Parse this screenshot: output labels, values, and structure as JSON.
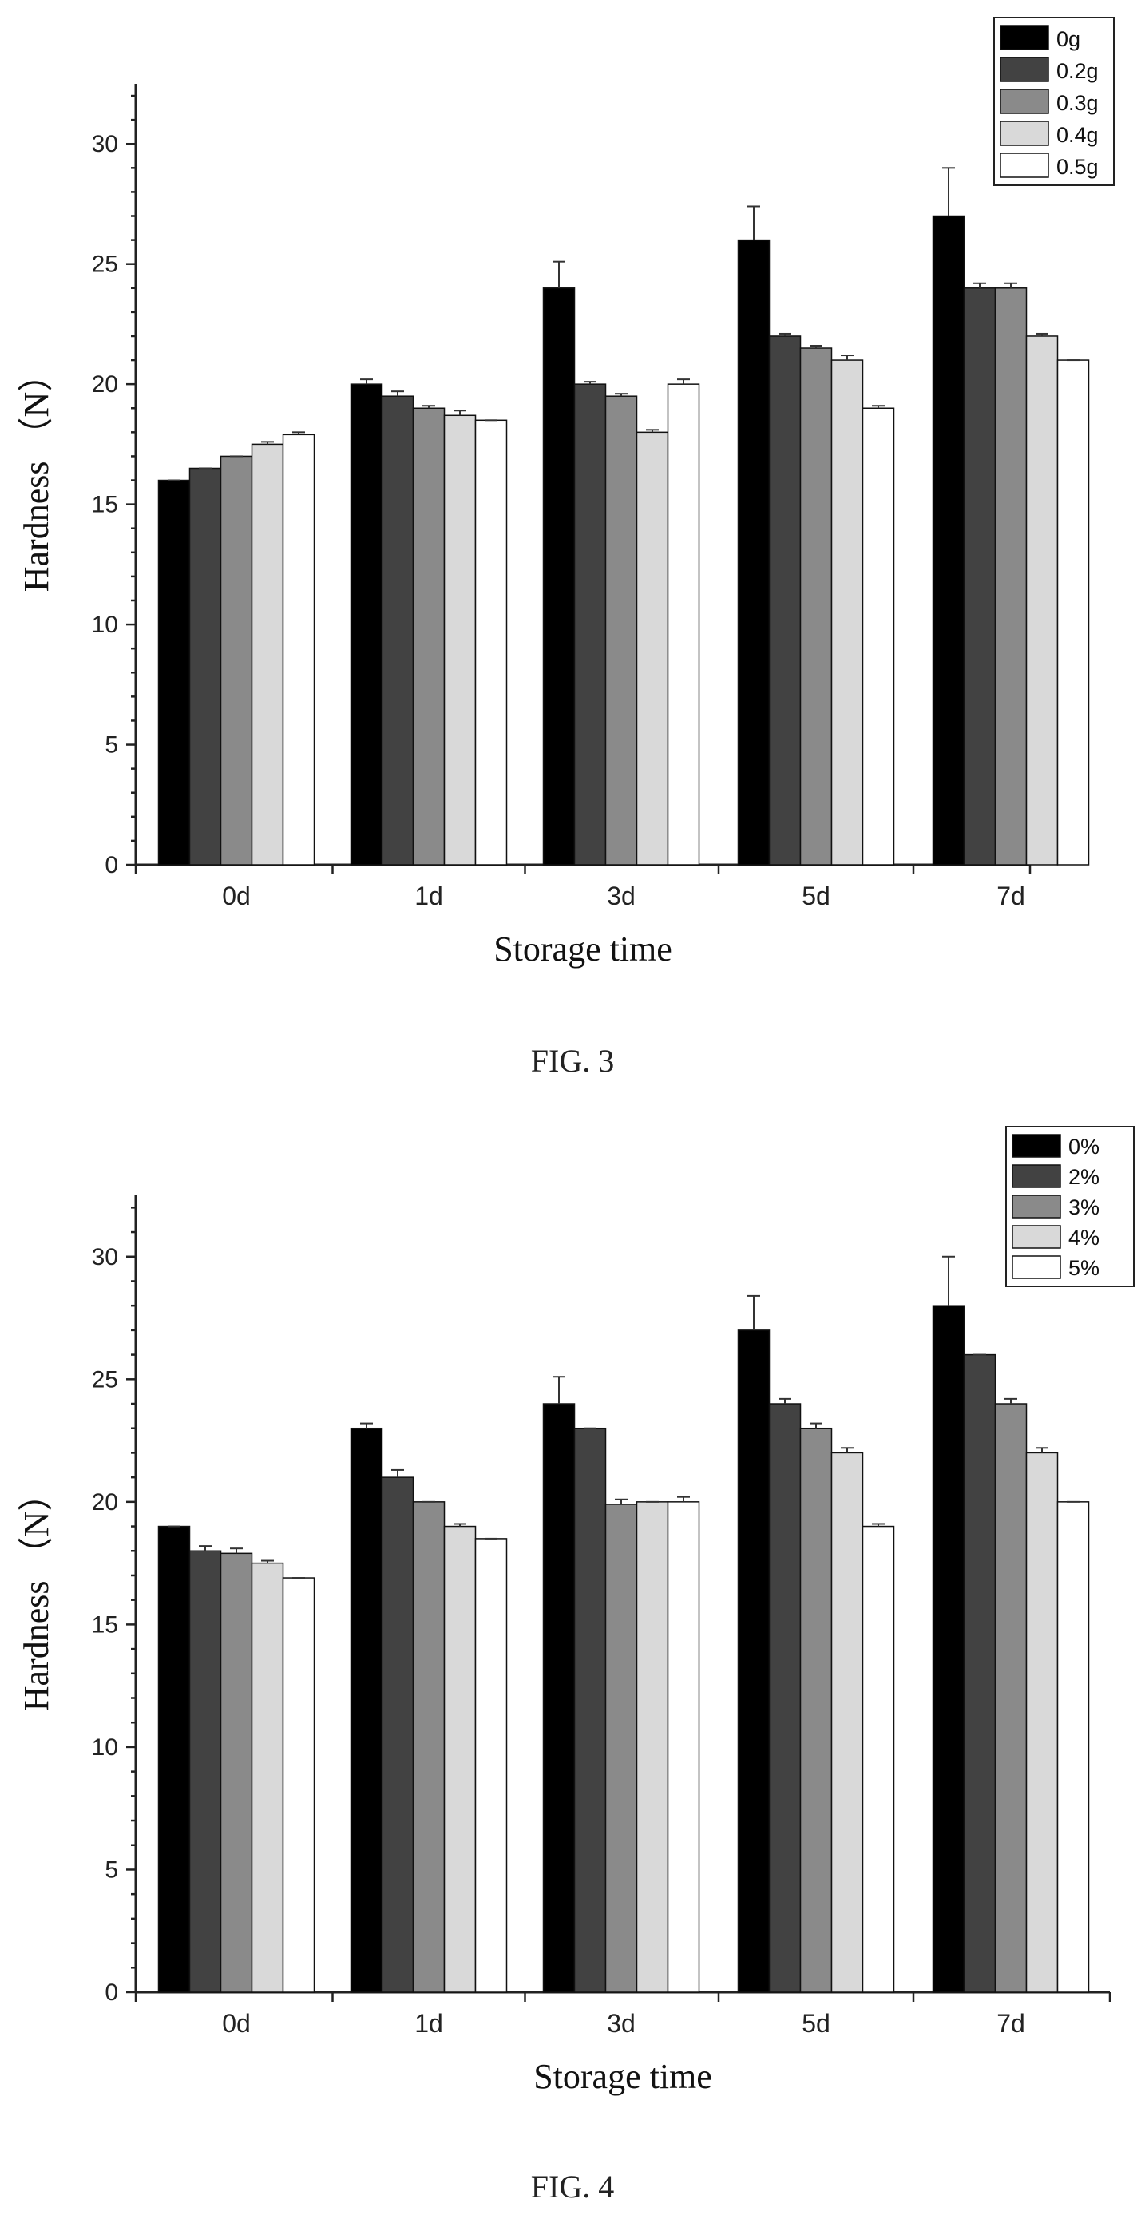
{
  "chart_data": [
    {
      "type": "bar",
      "caption": "FIG. 3",
      "xlabel": "Storage time",
      "ylabel": "Hardness （N）",
      "ylim": [
        0,
        32.5
      ],
      "yticks": [
        "0",
        "5",
        "10",
        "15",
        "20",
        "25",
        "30"
      ],
      "categories": [
        "0d",
        "1d",
        "3d",
        "5d",
        "7d"
      ],
      "legend_position": "top-right",
      "series": [
        {
          "name": "0g",
          "color": "#000000",
          "values": [
            16.0,
            20.0,
            24.0,
            26.0,
            27.0
          ],
          "errors": [
            0.0,
            0.2,
            1.1,
            1.4,
            2.0
          ]
        },
        {
          "name": "0.2g",
          "color": "#424242",
          "values": [
            16.5,
            19.5,
            20.0,
            22.0,
            24.0
          ],
          "errors": [
            0.0,
            0.2,
            0.1,
            0.1,
            0.2
          ]
        },
        {
          "name": "0.3g",
          "color": "#8a8a8a",
          "values": [
            17.0,
            19.0,
            19.5,
            21.5,
            24.0
          ],
          "errors": [
            0.0,
            0.1,
            0.1,
            0.1,
            0.2
          ]
        },
        {
          "name": "0.4g",
          "color": "#d9d9d9",
          "values": [
            17.5,
            18.7,
            18.0,
            21.0,
            22.0
          ],
          "errors": [
            0.1,
            0.2,
            0.1,
            0.2,
            0.1
          ]
        },
        {
          "name": "0.5g",
          "color": "#ffffff",
          "values": [
            17.9,
            18.5,
            20.0,
            19.0,
            21.0
          ],
          "errors": [
            0.1,
            0.0,
            0.2,
            0.1,
            0.0
          ]
        }
      ]
    },
    {
      "type": "bar",
      "caption": "FIG. 4",
      "xlabel": "Storage time",
      "ylabel": "Hardness （N）",
      "ylim": [
        0,
        32.5
      ],
      "yticks": [
        "0",
        "5",
        "10",
        "15",
        "20",
        "25",
        "30"
      ],
      "categories": [
        "0d",
        "1d",
        "3d",
        "5d",
        "7d"
      ],
      "legend_position": "top-right",
      "series": [
        {
          "name": "0%",
          "color": "#000000",
          "values": [
            19.0,
            23.0,
            24.0,
            27.0,
            28.0
          ],
          "errors": [
            0.0,
            0.2,
            1.1,
            1.4,
            2.0
          ]
        },
        {
          "name": "2%",
          "color": "#424242",
          "values": [
            18.0,
            21.0,
            23.0,
            24.0,
            26.0
          ],
          "errors": [
            0.2,
            0.3,
            0.0,
            0.2,
            0.0
          ]
        },
        {
          "name": "3%",
          "color": "#8a8a8a",
          "values": [
            17.9,
            20.0,
            19.9,
            23.0,
            24.0
          ],
          "errors": [
            0.2,
            0.0,
            0.2,
            0.2,
            0.2
          ]
        },
        {
          "name": "4%",
          "color": "#d9d9d9",
          "values": [
            17.5,
            19.0,
            20.0,
            22.0,
            22.0
          ],
          "errors": [
            0.1,
            0.1,
            0.0,
            0.2,
            0.2
          ]
        },
        {
          "name": "5%",
          "color": "#ffffff",
          "values": [
            16.9,
            18.5,
            20.0,
            19.0,
            20.0
          ],
          "errors": [
            0.0,
            0.0,
            0.2,
            0.1,
            0.0
          ]
        }
      ]
    }
  ]
}
